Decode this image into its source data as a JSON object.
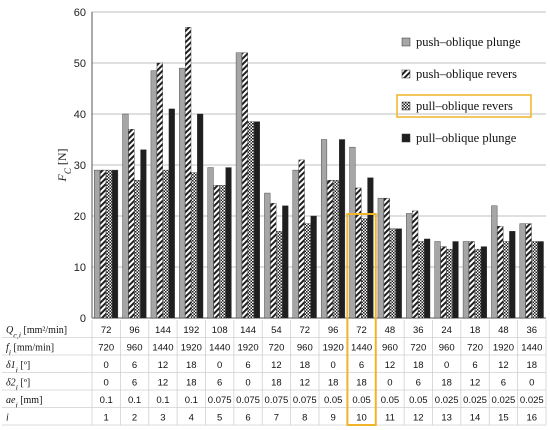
{
  "chart_data": {
    "type": "bar",
    "ylabel": "F_c [N]",
    "ylim": [
      0,
      60
    ],
    "yticks": [
      0,
      10,
      20,
      30,
      40,
      50,
      60
    ],
    "categories": [
      "1",
      "2",
      "3",
      "4",
      "5",
      "6",
      "7",
      "8",
      "9",
      "10",
      "11",
      "12",
      "13",
      "14",
      "15",
      "16"
    ],
    "highlight_index": 9,
    "series": [
      {
        "name": "push–oblique plunge",
        "pattern": "gray",
        "values": [
          29,
          40,
          48.5,
          49,
          29.5,
          52,
          24.5,
          29,
          35,
          33.5,
          23.5,
          20.5,
          15,
          15,
          22,
          18.5
        ]
      },
      {
        "name": "push–oblique revers",
        "pattern": "diagonal",
        "values": [
          29,
          37,
          50,
          57,
          26,
          52,
          22.5,
          31,
          27,
          25.5,
          23.5,
          21,
          14,
          15,
          18,
          18.5
        ]
      },
      {
        "name": "pull–oblique revers",
        "pattern": "checker",
        "values": [
          29,
          27,
          29,
          28.5,
          26,
          38.5,
          17,
          18.5,
          27,
          19.5,
          17.5,
          15,
          13.5,
          13.5,
          15,
          15
        ]
      },
      {
        "name": "pull–oblique plunge",
        "pattern": "black",
        "values": [
          29,
          33,
          41,
          40,
          29.5,
          38.5,
          22,
          20,
          35,
          27.5,
          17.5,
          15.5,
          15,
          14,
          17,
          15
        ]
      }
    ],
    "table": {
      "headers": [
        "Q_{c,i} [mm²/min]",
        "f_i [mm/min]",
        "δ1_i [º]",
        "δ2_i [º]",
        "ae_i [mm]",
        "i"
      ],
      "rows": [
        [
          "72",
          "96",
          "144",
          "192",
          "108",
          "144",
          "54",
          "72",
          "96",
          "72",
          "48",
          "36",
          "24",
          "18",
          "48",
          "36"
        ],
        [
          "720",
          "960",
          "1440",
          "1920",
          "1440",
          "1920",
          "720",
          "960",
          "1920",
          "1440",
          "960",
          "720",
          "960",
          "720",
          "1920",
          "1440"
        ],
        [
          "0",
          "6",
          "12",
          "18",
          "0",
          "6",
          "12",
          "18",
          "0",
          "6",
          "12",
          "18",
          "0",
          "6",
          "12",
          "18"
        ],
        [
          "0",
          "6",
          "12",
          "18",
          "6",
          "0",
          "18",
          "12",
          "18",
          "18",
          "0",
          "6",
          "18",
          "12",
          "6",
          "0"
        ],
        [
          "0.1",
          "0.1",
          "0.1",
          "0.1",
          "0.075",
          "0.075",
          "0.075",
          "0.075",
          "0.05",
          "0.05",
          "0.05",
          "0.05",
          "0.025",
          "0.025",
          "0.025",
          "0.025"
        ],
        [
          "1",
          "2",
          "3",
          "4",
          "5",
          "6",
          "7",
          "8",
          "9",
          "10",
          "11",
          "12",
          "13",
          "14",
          "15",
          "16"
        ]
      ]
    },
    "colors": {
      "gray": "#a6a6a6",
      "black": "#1f1f1f",
      "highlight": "#f0b429",
      "grid": "#bfbfbf"
    }
  }
}
